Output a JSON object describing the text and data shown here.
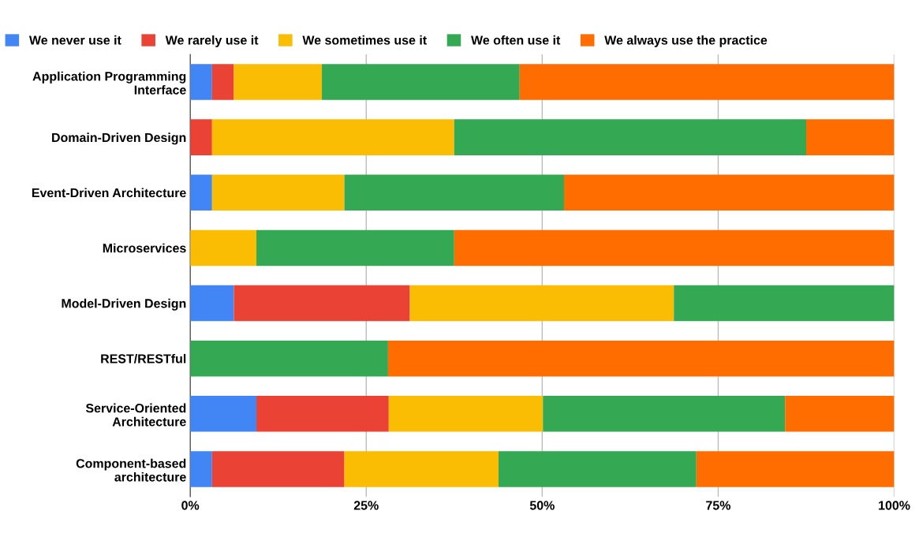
{
  "chart_data": {
    "type": "bar",
    "orientation": "horizontal",
    "stacked": true,
    "categories": [
      "Application Programming\nInterface",
      "Domain-Driven Design",
      "Event-Driven Architecture",
      "Microservices",
      "Model-Driven Design",
      "REST/RESTful",
      "Service-Oriented\nArchitecture",
      "Component-based\narchitecture"
    ],
    "series": [
      {
        "name": "We never use it",
        "color": "#4285f4",
        "values": [
          3.1,
          0,
          3.1,
          0,
          6.2,
          0,
          9.4,
          3.1
        ]
      },
      {
        "name": "We rarely use it",
        "color": "#ea4335",
        "values": [
          3.1,
          3.1,
          0,
          0,
          25,
          0,
          18.8,
          18.8
        ]
      },
      {
        "name": "We sometimes use it",
        "color": "#fbbc04",
        "values": [
          12.5,
          34.4,
          18.8,
          9.4,
          37.5,
          0,
          21.9,
          21.9
        ]
      },
      {
        "name": "We often use it",
        "color": "#34a853",
        "values": [
          28.1,
          50,
          31.2,
          28.1,
          31.3,
          28.1,
          34.4,
          28.1
        ]
      },
      {
        "name": "We always use the practice",
        "color": "#ff6d01",
        "values": [
          53.2,
          12.5,
          46.9,
          62.5,
          0,
          71.9,
          15.5,
          28.1
        ]
      }
    ],
    "xlim": [
      0,
      100
    ],
    "xticks": [
      {
        "value": 0,
        "label": "0%"
      },
      {
        "value": 25,
        "label": "25%"
      },
      {
        "value": 50,
        "label": "50%"
      },
      {
        "value": 75,
        "label": "75%"
      },
      {
        "value": 100,
        "label": "100%"
      }
    ],
    "grid": "x",
    "legend": "top"
  }
}
